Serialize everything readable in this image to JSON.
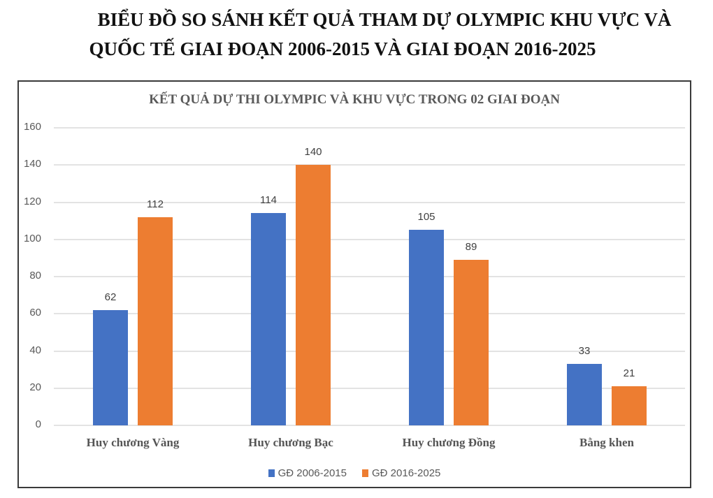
{
  "header": {
    "title_line1": "BIỂU ĐỒ SO SÁNH KẾT QUẢ THAM DỰ OLYMPIC KHU VỰC VÀ",
    "title_line2": "QUỐC TẾ GIAI ĐOẠN 2006-2015 VÀ GIAI ĐOẠN 2016-2025"
  },
  "colors": {
    "series1": "#4472C4",
    "series2": "#ED7D31",
    "gridline": "#E3E3E3",
    "border": "#3A3A3A"
  },
  "chart_data": {
    "type": "bar",
    "title": "KẾT QUẢ DỰ THI OLYMPIC VÀ KHU VỰC TRONG 02 GIAI ĐOẠN",
    "categories": [
      "Huy chương Vàng",
      "Huy chương Bạc",
      "Huy chương Đồng",
      "Bằng khen"
    ],
    "series": [
      {
        "name": "GĐ 2006-2015",
        "color": "#4472C4",
        "values": [
          62,
          114,
          105,
          33
        ]
      },
      {
        "name": "GĐ 2016-2025",
        "color": "#ED7D31",
        "values": [
          112,
          140,
          89,
          21
        ]
      }
    ],
    "xlabel": "",
    "ylabel": "",
    "ylim": [
      0,
      160
    ],
    "yticks": [
      0,
      20,
      40,
      60,
      80,
      100,
      120,
      140,
      160
    ],
    "grid": true,
    "legend_position": "bottom",
    "data_labels": true
  }
}
